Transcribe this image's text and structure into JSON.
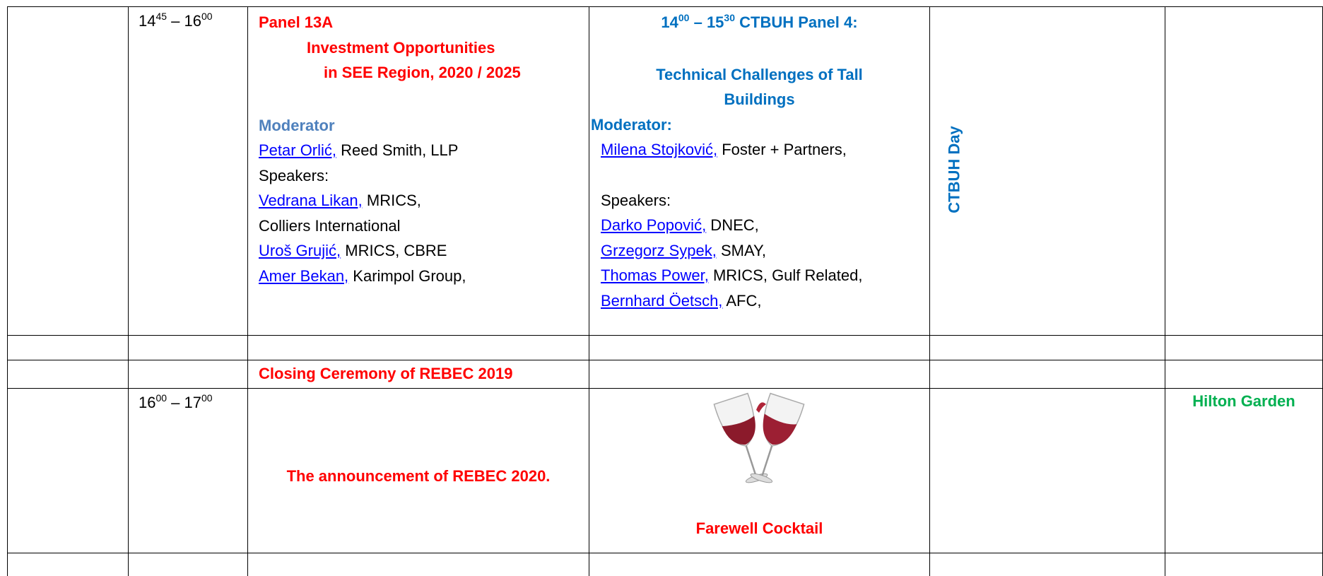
{
  "schedule": {
    "session": {
      "time": {
        "start": "14",
        "start_sup": "45",
        "dash": " – ",
        "end": "16",
        "end_sup": "00"
      },
      "panel_13a": {
        "title": "Panel 13A",
        "subtitle": [
          "Investment Opportunities",
          "in SEE Region, 2020 / 2025"
        ],
        "moderator_label": "Moderator",
        "moderator": {
          "name": "Petar Orlić,",
          "affiliation": " Reed Smith, LLP"
        },
        "speakers_label": "Speakers:",
        "speakers": [
          {
            "name": "Vedrana Likan,",
            "affiliation": " MRICS,"
          },
          {
            "affiliation": "Colliers International"
          },
          {
            "name": "Uroš Grujić,",
            "affiliation": " MRICS, CBRE"
          },
          {
            "name": "Amer Bekan,",
            "affiliation": "  Karimpol Group,"
          }
        ]
      },
      "ctbuh_panel": {
        "time": {
          "start": "14",
          "start_sup": "00",
          "dash": " – ",
          "end": "15",
          "end_sup": "30"
        },
        "label": " CTBUH Panel 4:",
        "title": [
          "Technical Challenges of Tall",
          "Buildings"
        ],
        "moderator_label": "Moderator:",
        "moderator": {
          "name": "Milena Stojković,",
          "affiliation": " Foster + Partners,"
        },
        "speakers_label": "Speakers:",
        "speakers": [
          {
            "name": "Darko Popović,",
            "affiliation": " DNEC,"
          },
          {
            "name": "Grzegorz Sypek,",
            "affiliation": " SMAY,"
          },
          {
            "name": "Thomas Power,",
            "affiliation": " MRICS, Gulf Related,"
          },
          {
            "name": "Bernhard  Öetsch,",
            "affiliation": " AFC,"
          }
        ]
      },
      "ctbuh_day": "CTBUH Day"
    },
    "closing": "Closing Ceremony of REBEC 2019",
    "final": {
      "time": {
        "start": "16",
        "start_sup": "00",
        "dash": " – ",
        "end": "17",
        "end_sup": "00"
      },
      "announcement": "The announcement of REBEC 2020.",
      "cocktail": "Farewell Cocktail",
      "venue": "Hilton Garden"
    }
  }
}
